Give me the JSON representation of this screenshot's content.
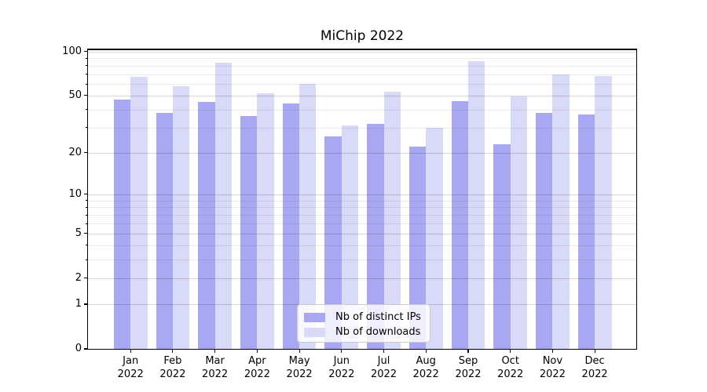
{
  "title": "MiChip 2022",
  "legend": {
    "items": [
      {
        "key": "ips",
        "label": "Nb of distinct IPs",
        "color": "#a8a8f2"
      },
      {
        "key": "downloads",
        "label": "Nb of downloads",
        "color": "#d9d9f8"
      }
    ]
  },
  "chart_data": {
    "type": "bar",
    "title": "MiChip 2022",
    "categories": [
      "Jan",
      "Feb",
      "Mar",
      "Apr",
      "May",
      "Jun",
      "Jul",
      "Aug",
      "Sep",
      "Oct",
      "Nov",
      "Dec"
    ],
    "category_year": "2022",
    "series": [
      {
        "name": "Nb of distinct IPs",
        "key": "ips",
        "color": "#a8a8f2",
        "values": [
          47,
          38,
          45,
          36,
          44,
          26,
          32,
          22,
          46,
          23,
          38,
          37
        ]
      },
      {
        "name": "Nb of downloads",
        "key": "downloads",
        "color": "#d9d9f8",
        "values": [
          67,
          58,
          84,
          52,
          60,
          31,
          53,
          30,
          86,
          49,
          70,
          68
        ]
      }
    ],
    "yscale": "log1p",
    "y_major_ticks": [
      0,
      1,
      2,
      5,
      10,
      20,
      50,
      100
    ],
    "y_minor_ticks": [
      3,
      4,
      6,
      7,
      8,
      9,
      30,
      40,
      60,
      70,
      80,
      90
    ],
    "ylim": [
      0,
      103
    ],
    "grid": true,
    "legend_position": "lower center",
    "xlabel": "",
    "ylabel": ""
  }
}
